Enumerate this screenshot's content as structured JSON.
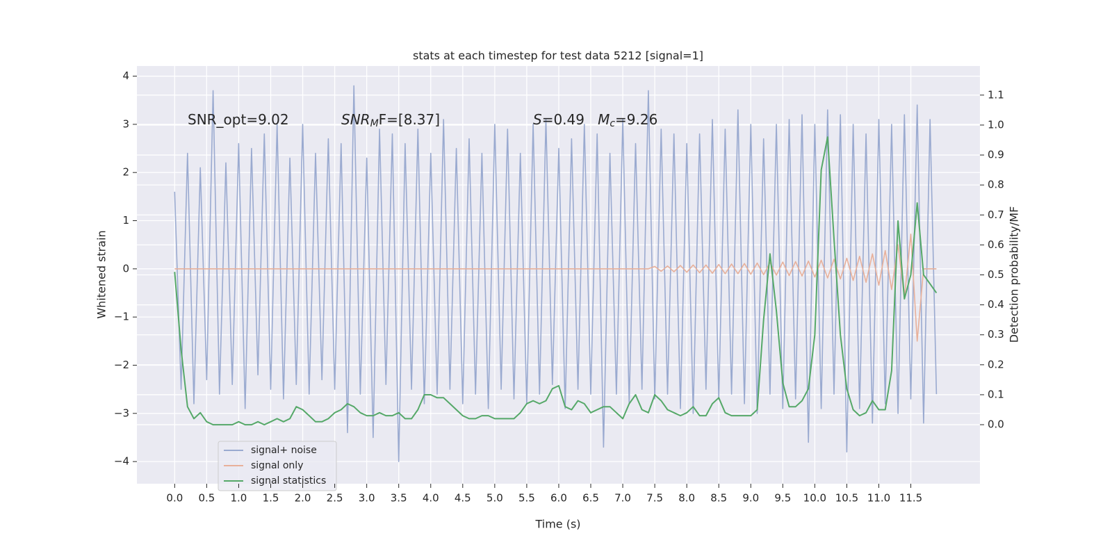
{
  "chart_data": {
    "type": "line",
    "title": "stats at each timestep for test data 5212 [signal=1]",
    "xlabel": "Time (s)",
    "ylabel": "Whitened strain",
    "y2label": "Detection probability/MF",
    "annotations": [
      [
        "SNR_opt=9.02"
      ],
      [
        "SNR",
        "M",
        "F=[8.37]"
      ],
      [
        "S",
        "=0.49   ",
        "M",
        "c",
        "=9.26"
      ]
    ],
    "x": [
      0,
      0.1,
      0.2,
      0.3,
      0.4,
      0.5,
      0.6,
      0.7,
      0.8,
      0.9,
      1,
      1.1,
      1.2,
      1.3,
      1.4,
      1.5,
      1.6,
      1.7,
      1.8,
      1.9,
      2,
      2.1,
      2.2,
      2.3,
      2.4,
      2.5,
      2.6,
      2.7,
      2.8,
      2.9,
      3,
      3.1,
      3.2,
      3.3,
      3.4,
      3.5,
      3.6,
      3.7,
      3.8,
      3.9,
      4,
      4.1,
      4.2,
      4.3,
      4.4,
      4.5,
      4.6,
      4.7,
      4.8,
      4.9,
      5,
      5.1,
      5.2,
      5.3,
      5.4,
      5.5,
      5.6,
      5.7,
      5.8,
      5.9,
      6,
      6.1,
      6.2,
      6.3,
      6.4,
      6.5,
      6.6,
      6.7,
      6.8,
      6.9,
      7,
      7.1,
      7.2,
      7.3,
      7.4,
      7.5,
      7.6,
      7.7,
      7.8,
      7.9,
      8,
      8.1,
      8.2,
      8.3,
      8.4,
      8.5,
      8.6,
      8.7,
      8.8,
      8.9,
      9,
      9.1,
      9.2,
      9.3,
      9.4,
      9.5,
      9.6,
      9.7,
      9.8,
      9.9,
      10,
      10.1,
      10.2,
      10.3,
      10.4,
      10.5,
      10.6,
      10.7,
      10.8,
      10.9,
      11,
      11.1,
      11.2,
      11.3,
      11.4,
      11.5,
      11.6,
      11.7,
      11.8,
      11.9
    ],
    "series": [
      {
        "name": "signal+ noise",
        "color": "#9aaad0",
        "values": [
          1.6,
          -2.5,
          2.4,
          -2.8,
          2.1,
          -2.3,
          3.7,
          -2.6,
          2.2,
          -2.4,
          2.6,
          -2.9,
          2.5,
          -2.2,
          2.8,
          -2.5,
          3.0,
          -2.7,
          2.3,
          -2.4,
          3.0,
          -2.6,
          2.4,
          -2.3,
          2.7,
          -2.5,
          2.6,
          -3.4,
          3.8,
          -2.6,
          2.3,
          -3.5,
          2.9,
          -2.4,
          2.8,
          -4.0,
          2.6,
          -2.5,
          2.9,
          -2.8,
          2.4,
          -2.6,
          3.1,
          -2.5,
          2.5,
          -2.8,
          2.7,
          -2.6,
          2.4,
          -2.9,
          3.0,
          -2.5,
          2.9,
          -2.7,
          2.4,
          -2.8,
          3.0,
          -2.6,
          3.1,
          -2.4,
          2.5,
          -2.9,
          2.7,
          -2.5,
          3.0,
          -2.6,
          2.8,
          -3.7,
          2.4,
          -2.6,
          3.1,
          -2.8,
          2.6,
          -2.5,
          3.7,
          -2.7,
          2.9,
          -2.6,
          2.8,
          -2.9,
          2.6,
          -3.0,
          2.8,
          -2.5,
          3.1,
          -2.7,
          2.9,
          -2.6,
          3.3,
          -2.8,
          3.0,
          -3.0,
          2.7,
          -2.6,
          3.0,
          -2.9,
          3.1,
          -2.7,
          3.2,
          -3.6,
          3.0,
          -2.9,
          3.3,
          -2.6,
          3.2,
          -3.8,
          3.0,
          -2.9,
          2.8,
          -3.2,
          3.1,
          -2.8,
          3.0,
          -3.0,
          3.2,
          -2.7,
          3.4,
          -3.2,
          3.1,
          -2.6
        ]
      },
      {
        "name": "signal only",
        "color": "#e8b09a",
        "values": [
          0,
          0,
          0,
          0,
          0,
          0,
          0,
          0,
          0,
          0,
          0,
          0,
          0,
          0,
          0,
          0,
          0,
          0,
          0,
          0,
          0,
          0,
          0,
          0,
          0,
          0,
          0,
          0,
          0,
          0,
          0,
          0,
          0,
          0,
          0,
          0,
          0,
          0,
          0,
          0,
          0,
          0,
          0,
          0,
          0,
          0,
          0,
          0,
          0,
          0,
          0,
          0,
          0,
          0,
          0,
          0,
          0,
          0,
          0,
          0,
          0,
          0,
          0,
          0,
          0,
          0,
          0,
          0,
          0,
          0,
          0,
          0,
          0,
          0,
          0,
          0.05,
          -0.05,
          0.06,
          -0.06,
          0.07,
          -0.07,
          0.08,
          -0.08,
          0.08,
          -0.09,
          0.09,
          -0.1,
          0.1,
          -0.1,
          0.11,
          -0.11,
          0.12,
          -0.12,
          0.13,
          -0.13,
          0.14,
          -0.14,
          0.15,
          -0.15,
          0.16,
          -0.17,
          0.18,
          -0.19,
          0.2,
          -0.21,
          0.22,
          -0.24,
          0.26,
          -0.28,
          0.31,
          -0.34,
          0.38,
          -0.43,
          0.5,
          -0.6,
          0.72,
          -1.5,
          0,
          0,
          0
        ]
      },
      {
        "name": "signal statistics",
        "color": "#55a868",
        "axis": "y2",
        "values": [
          0.51,
          0.25,
          0.06,
          0.02,
          0.04,
          0.01,
          0,
          0,
          0,
          0,
          0.01,
          0,
          0,
          0.01,
          0,
          0.01,
          0.02,
          0.01,
          0.02,
          0.06,
          0.05,
          0.03,
          0.01,
          0.01,
          0.02,
          0.04,
          0.05,
          0.07,
          0.06,
          0.04,
          0.03,
          0.03,
          0.04,
          0.03,
          0.03,
          0.04,
          0.02,
          0.02,
          0.05,
          0.1,
          0.1,
          0.09,
          0.09,
          0.07,
          0.05,
          0.03,
          0.02,
          0.02,
          0.03,
          0.03,
          0.02,
          0.02,
          0.02,
          0.02,
          0.04,
          0.07,
          0.08,
          0.07,
          0.08,
          0.12,
          0.13,
          0.06,
          0.05,
          0.08,
          0.07,
          0.04,
          0.05,
          0.06,
          0.06,
          0.04,
          0.02,
          0.07,
          0.1,
          0.05,
          0.04,
          0.1,
          0.08,
          0.05,
          0.04,
          0.03,
          0.04,
          0.06,
          0.03,
          0.03,
          0.07,
          0.09,
          0.04,
          0.03,
          0.03,
          0.03,
          0.03,
          0.05,
          0.35,
          0.57,
          0.38,
          0.14,
          0.06,
          0.06,
          0.08,
          0.12,
          0.3,
          0.85,
          0.96,
          0.62,
          0.3,
          0.12,
          0.05,
          0.03,
          0.04,
          0.08,
          0.05,
          0.05,
          0.18,
          0.68,
          0.42,
          0.5,
          0.74,
          0.5,
          0.47,
          0.44
        ]
      }
    ],
    "xlim": [
      -0.59,
      12.58
    ],
    "xticks": [
      {
        "value": 0,
        "label": "0.0"
      },
      0.5,
      {
        "value": 1,
        "label": "1.0"
      },
      1.5,
      {
        "value": 2,
        "label": "2.0"
      },
      2.5,
      {
        "value": 3,
        "label": "3.0"
      },
      3.5,
      {
        "value": 4,
        "label": "4.0"
      },
      4.5,
      {
        "value": 5,
        "label": "5.0"
      },
      5.5,
      {
        "value": 6,
        "label": "6.0"
      },
      6.5,
      {
        "value": 7,
        "label": "7.0"
      },
      7.5,
      {
        "value": 8,
        "label": "8.0"
      },
      8.5,
      {
        "value": 9,
        "label": "9.0"
      },
      9.5,
      {
        "value": 10,
        "label": "10.0"
      },
      10.5,
      {
        "value": 11,
        "label": "11.0"
      },
      11.5
    ],
    "ylim": [
      -4.46,
      4.21
    ],
    "yticks": [
      {
        "value": -4,
        "label": "−4"
      },
      {
        "value": -3,
        "label": "−3"
      },
      {
        "value": -2,
        "label": "−2"
      },
      {
        "value": -1,
        "label": "−1"
      },
      0,
      1,
      2,
      3,
      4
    ],
    "y2lim": [
      -0.197,
      1.197
    ],
    "y2ticks": [
      {
        "value": 0,
        "label": "0.0"
      },
      0.1,
      0.2,
      0.3,
      0.4,
      0.5,
      0.6,
      0.7,
      0.8,
      0.9,
      {
        "value": 1,
        "label": "1.0"
      },
      1.1
    ],
    "grid": true,
    "legend": "lower left"
  }
}
